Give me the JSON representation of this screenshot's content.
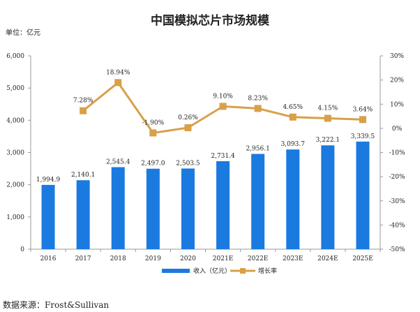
{
  "chart_data": {
    "type": "bar+line",
    "title": "中国模拟芯片市场规模",
    "unit_label": "单位：亿元",
    "categories": [
      "2016",
      "2017",
      "2018",
      "2019",
      "2020",
      "2021E",
      "2022E",
      "2023E",
      "2024E",
      "2025E"
    ],
    "series": [
      {
        "name": "收入（亿元）",
        "type": "bar",
        "axis": "left",
        "color": "#1a7ae0",
        "values": [
          1994.9,
          2140.1,
          2545.4,
          2497.0,
          2503.5,
          2731.4,
          2956.1,
          3093.7,
          3222.1,
          3339.5
        ],
        "labels": [
          "1,994.9",
          "2,140.1",
          "2,545.4",
          "2,497.0",
          "2,503.5",
          "2,731.4",
          "2,956.1",
          "3,093.7",
          "3,222.1",
          "3,339.5"
        ]
      },
      {
        "name": "增长率",
        "type": "line",
        "axis": "right",
        "color": "#d9a048",
        "values": [
          null,
          7.28,
          18.94,
          -1.9,
          0.26,
          9.1,
          8.23,
          4.65,
          4.15,
          3.64
        ],
        "labels": [
          null,
          "7.28%",
          "18.94%",
          "-1.90%",
          "0.26%",
          "9.10%",
          "8.23%",
          "4.65%",
          "4.15%",
          "3.64%"
        ]
      }
    ],
    "y_left": {
      "min": 0,
      "max": 6000,
      "step": 1000,
      "ticks": [
        "0",
        "1,000",
        "2,000",
        "3,000",
        "4,000",
        "5,000",
        "6,000"
      ]
    },
    "y_right": {
      "min": -50,
      "max": 30,
      "step": 10,
      "ticks": [
        "-50%",
        "-40%",
        "-30%",
        "-20%",
        "-10%",
        "0%",
        "10%",
        "20%",
        "30%"
      ]
    },
    "legend_position": "bottom-center",
    "source": "数据来源：Frost&Sullivan"
  }
}
